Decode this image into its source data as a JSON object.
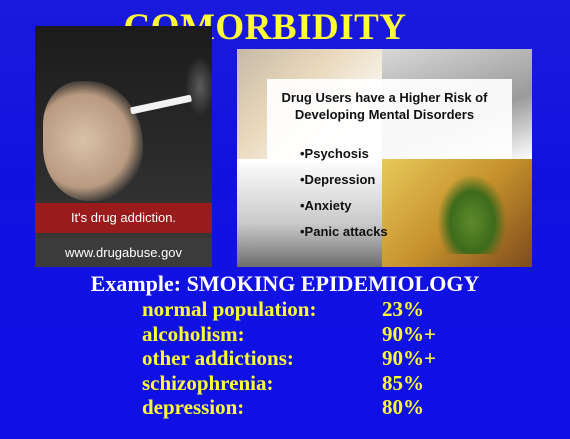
{
  "title": "COMORBIDITY",
  "left_ad": {
    "tagline": "It's drug addiction.",
    "url": "www.drugabuse.gov"
  },
  "collage": {
    "heading_line1": "Drug Users have a Higher Risk of",
    "heading_line2": "Developing Mental Disorders",
    "bullets": [
      "•Psychosis",
      "•Depression",
      "•Anxiety",
      "•Panic attacks"
    ]
  },
  "example": {
    "heading": "Example: SMOKING EPIDEMIOLOGY",
    "rows": [
      {
        "label": "normal population:",
        "value": "23%"
      },
      {
        "label": "alcoholism:",
        "value": "90%+"
      },
      {
        "label": "other addictions:",
        "value": "90%+"
      },
      {
        "label": "schizophrenia:",
        "value": "85%"
      },
      {
        "label": "depression:",
        "value": "80%"
      }
    ]
  },
  "colors": {
    "background": "#1212e0",
    "title": "#ffff33",
    "example_heading": "#ffffff",
    "stats": "#ffff33",
    "ad_band": "#9a1b1b"
  }
}
